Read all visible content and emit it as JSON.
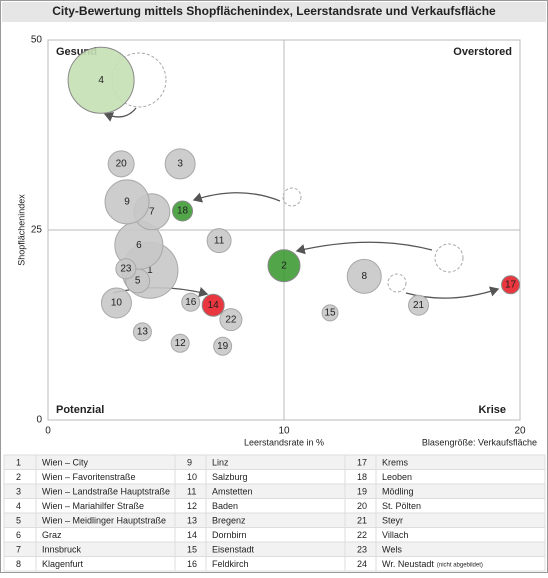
{
  "chart_data": {
    "type": "bubble",
    "title": "City-Bewertung mittels Shopflächenindex, Leerstandsrate und Verkaufsfläche",
    "x_label": "Leerstandsrate in %",
    "y_label": "Shopflächenindex",
    "size_label": "Blasengröße: Verkaufsfläche",
    "quadrants": {
      "top_left": "Gesund",
      "top_right": "Overstored",
      "bottom_left": "Potenzial",
      "bottom_right": "Krise"
    },
    "xlim": [
      0,
      20
    ],
    "ylim": [
      0,
      50
    ],
    "xticks": [
      0,
      10,
      20
    ],
    "yticks": [
      0,
      25,
      50
    ],
    "dividers": {
      "x": 10,
      "y": 25
    },
    "labels": [
      "1",
      "2",
      "3",
      "4",
      "5",
      "6",
      "7",
      "8",
      "9",
      "10",
      "11",
      "12",
      "13",
      "14",
      "15",
      "16",
      "17",
      "18",
      "19",
      "20",
      "21",
      "22",
      "23"
    ],
    "x": [
      4.32,
      10.0,
      5.6,
      2.25,
      3.8,
      3.85,
      4.4,
      13.4,
      3.35,
      2.9,
      7.25,
      5.6,
      4.0,
      7.0,
      11.95,
      6.05,
      19.6,
      5.7,
      7.4,
      3.1,
      15.7,
      7.75,
      3.3
    ],
    "values": [
      19.7,
      20.3,
      33.7,
      44.7,
      18.3,
      23.0,
      27.4,
      18.9,
      28.7,
      15.4,
      23.6,
      10.1,
      11.6,
      15.1,
      14.1,
      15.5,
      17.8,
      27.5,
      9.7,
      33.7,
      15.1,
      13.2,
      19.9
    ],
    "sizes": [
      28,
      16,
      15,
      33,
      12,
      24,
      18,
      17,
      22,
      15,
      12,
      9,
      9,
      11,
      8,
      9,
      9,
      10,
      9,
      13,
      10,
      11,
      10
    ],
    "colors": [
      "#c8c8c8",
      "#3f9b35",
      "#c8c8c8",
      "#c5e0b4",
      "#c8c8c8",
      "#c8c8c8",
      "#c8c8c8",
      "#c8c8c8",
      "#c8c8c8",
      "#c8c8c8",
      "#c8c8c8",
      "#c8c8c8",
      "#c8c8c8",
      "#e8202a",
      "#c8c8c8",
      "#c8c8c8",
      "#e8202a",
      "#3f9b35",
      "#c8c8c8",
      "#c8c8c8",
      "#c8c8c8",
      "#c8c8c8",
      "#c8c8c8"
    ]
  },
  "legend_table": {
    "rows": [
      [
        "1",
        "Wien – City"
      ],
      [
        "2",
        "Wien – Favoritenstraße"
      ],
      [
        "3",
        "Wien – Landstraße Hauptstraße"
      ],
      [
        "4",
        "Wien – Mariahilfer Straße"
      ],
      [
        "5",
        "Wien – Meidlinger Hauptstraße"
      ],
      [
        "6",
        "Graz"
      ],
      [
        "7",
        "Innsbruck"
      ],
      [
        "8",
        "Klagenfurt"
      ],
      [
        "9",
        "Linz"
      ],
      [
        "10",
        "Salzburg"
      ],
      [
        "11",
        "Amstetten"
      ],
      [
        "12",
        "Baden"
      ],
      [
        "13",
        "Bregenz"
      ],
      [
        "14",
        "Dornbirn"
      ],
      [
        "15",
        "Eisenstadt"
      ],
      [
        "16",
        "Feldkirch"
      ],
      [
        "17",
        "Krems"
      ],
      [
        "18",
        "Leoben"
      ],
      [
        "19",
        "Mödling"
      ],
      [
        "20",
        "St. Pölten"
      ],
      [
        "21",
        "Steyr"
      ],
      [
        "22",
        "Villach"
      ],
      [
        "23",
        "Wels"
      ],
      [
        "24",
        "Wr. Neustadt",
        "(nicht abgebildet)"
      ]
    ]
  }
}
